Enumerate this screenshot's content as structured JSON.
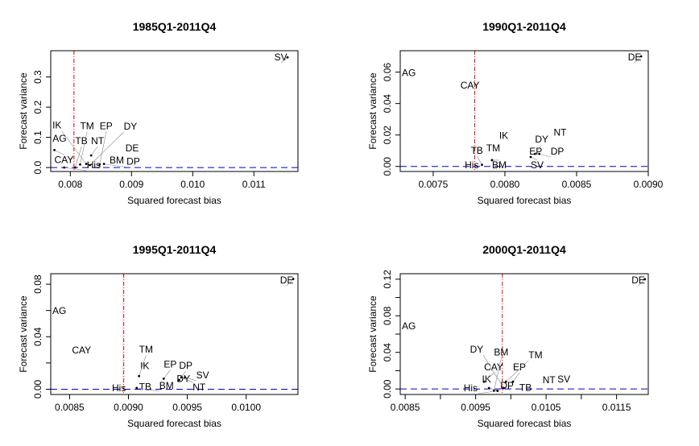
{
  "chart_data": [
    {
      "type": "scatter",
      "title": "1985Q1-2011Q4",
      "xlabel": "Squared forecast bias",
      "ylabel": "Forecast variance",
      "xlim": [
        0.00768,
        0.01172
      ],
      "ylim": [
        -0.013,
        0.387
      ],
      "xticks": [
        {
          "v": 0.008,
          "label": "0.008"
        },
        {
          "v": 0.009,
          "label": "0.009"
        },
        {
          "v": 0.01,
          "label": "0.010"
        },
        {
          "v": 0.011,
          "label": "0.011"
        }
      ],
      "yticks": [
        {
          "v": 0.0,
          "label": "0.0"
        },
        {
          "v": 0.1,
          "label": "0.1"
        },
        {
          "v": 0.2,
          "label": "0.2"
        },
        {
          "v": 0.3,
          "label": "0.3"
        }
      ],
      "hline": 0.0,
      "vline": 0.00806,
      "points": [
        {
          "label": "SV",
          "x": 0.01155,
          "y": 0.365,
          "anchor": "end"
        },
        {
          "label": "AG",
          "x": 0.00771,
          "y": 0.088
        },
        {
          "label": "CAY",
          "x": 0.00774,
          "y": 0.058
        },
        {
          "label": "NT",
          "x": 0.00834,
          "y": 0.04
        },
        {
          "label": "DE",
          "x": 0.0089,
          "y": 0.057
        },
        {
          "label": "BM",
          "x": 0.00864,
          "y": 0.016
        },
        {
          "label": "TM",
          "x": 0.00816,
          "y": 0.01
        },
        {
          "label": "IK",
          "x": 0.00826,
          "y": 0.012
        },
        {
          "label": "DY",
          "x": 0.00832,
          "y": 0.008
        },
        {
          "label": "EP",
          "x": 0.00848,
          "y": 0.01
        },
        {
          "label": "DP",
          "x": 0.00855,
          "y": 0.012
        },
        {
          "label": "His",
          "x": 0.0079,
          "y": 0.0
        },
        {
          "label": "TB",
          "x": 0.00808,
          "y": 0.0
        }
      ]
    },
    {
      "type": "scatter",
      "title": "1990Q1-2011Q4",
      "xlabel": "Squared forecast bias",
      "ylabel": "Forecast variance",
      "xlim": [
        0.00727,
        0.009
      ],
      "ylim": [
        -0.0032,
        0.0736
      ],
      "xticks": [
        {
          "v": 0.0075,
          "label": "0.0075"
        },
        {
          "v": 0.008,
          "label": "0.0080"
        },
        {
          "v": 0.0085,
          "label": "0.0085"
        },
        {
          "v": 0.009,
          "label": "0.0090"
        }
      ],
      "yticks": [
        {
          "v": 0.0,
          "label": "0.00"
        },
        {
          "v": 0.02,
          "label": "0.02"
        },
        {
          "v": 0.04,
          "label": "0.04"
        },
        {
          "v": 0.06,
          "label": "0.06"
        }
      ],
      "hline": 0.0,
      "vline": 0.00779,
      "points": [
        {
          "label": "DE",
          "x": 0.00895,
          "y": 0.07,
          "anchor": "end"
        },
        {
          "label": "AG",
          "x": 0.00728,
          "y": 0.058
        },
        {
          "label": "CAY",
          "x": 0.00769,
          "y": 0.05
        },
        {
          "label": "IK",
          "x": 0.00796,
          "y": 0.018
        },
        {
          "label": "NT",
          "x": 0.00834,
          "y": 0.02
        },
        {
          "label": "TM",
          "x": 0.00787,
          "y": 0.01
        },
        {
          "label": "BM",
          "x": 0.00791,
          "y": 0.004
        },
        {
          "label": "EP",
          "x": 0.00817,
          "y": 0.008
        },
        {
          "label": "DY",
          "x": 0.00821,
          "y": 0.008
        },
        {
          "label": "SV",
          "x": 0.00818,
          "y": 0.006
        },
        {
          "label": "DP",
          "x": 0.00824,
          "y": 0.008
        },
        {
          "label": "TB",
          "x": 0.00784,
          "y": 0.001
        },
        {
          "label": "His",
          "x": 0.00772,
          "y": -0.001
        }
      ]
    },
    {
      "type": "scatter",
      "title": "1995Q1-2011Q4",
      "xlabel": "Squared forecast bias",
      "ylabel": "Forecast variance",
      "xlim": [
        0.00834,
        0.01044
      ],
      "ylim": [
        -0.004,
        0.088
      ],
      "xticks": [
        {
          "v": 0.0085,
          "label": "0.0085"
        },
        {
          "v": 0.009,
          "label": "0.0090"
        },
        {
          "v": 0.0095,
          "label": "0.0095"
        },
        {
          "v": 0.01,
          "label": "0.0100"
        }
      ],
      "yticks": [
        {
          "v": 0.0,
          "label": "0.00"
        },
        {
          "v": 0.04,
          "label": "0.04"
        },
        {
          "v": 0.08,
          "label": "0.08"
        }
      ],
      "yminor": [
        0.02,
        0.06
      ],
      "hline": 0.0,
      "vline": 0.00896,
      "points": [
        {
          "label": "DE",
          "x": 0.0104,
          "y": 0.084,
          "anchor": "end"
        },
        {
          "label": "AG",
          "x": 0.00835,
          "y": 0.058
        },
        {
          "label": "CAY",
          "x": 0.00852,
          "y": 0.028
        },
        {
          "label": "IK",
          "x": 0.0091,
          "y": 0.016
        },
        {
          "label": "TM",
          "x": 0.00909,
          "y": 0.01
        },
        {
          "label": "EP",
          "x": 0.0093,
          "y": 0.008
        },
        {
          "label": "DY",
          "x": 0.00941,
          "y": 0.006
        },
        {
          "label": "DP",
          "x": 0.00943,
          "y": 0.007
        },
        {
          "label": "NT",
          "x": 0.00945,
          "y": 0.009
        },
        {
          "label": "SV",
          "x": 0.00948,
          "y": 0.009
        },
        {
          "label": "BM",
          "x": 0.00907,
          "y": 0.001
        },
        {
          "label": "TB",
          "x": 0.00909,
          "y": 0.0
        },
        {
          "label": "His",
          "x": 0.00886,
          "y": -0.001
        }
      ]
    },
    {
      "type": "scatter",
      "title": "2000Q1-2011Q4",
      "xlabel": "Squared forecast bias",
      "ylabel": "Forecast variance",
      "xlim": [
        0.00843,
        0.01195
      ],
      "ylim": [
        -0.006,
        0.126
      ],
      "xticks": [
        {
          "v": 0.0085,
          "label": "0.0085"
        },
        {
          "v": 0.0095,
          "label": "0.0095"
        },
        {
          "v": 0.0105,
          "label": "0.0105"
        },
        {
          "v": 0.0115,
          "label": "0.0115"
        }
      ],
      "xminor": [
        0.009,
        0.01,
        0.011
      ],
      "yticks": [
        {
          "v": 0.0,
          "label": "0.00"
        },
        {
          "v": 0.04,
          "label": "0.04"
        },
        {
          "v": 0.08,
          "label": "0.08"
        },
        {
          "v": 0.12,
          "label": "0.12"
        }
      ],
      "yminor": [
        0.02,
        0.06,
        0.1
      ],
      "hline": 0.0,
      "vline": 0.00988,
      "points": [
        {
          "label": "DE",
          "x": 0.0119,
          "y": 0.12,
          "anchor": "end"
        },
        {
          "label": "AG",
          "x": 0.00844,
          "y": 0.066
        },
        {
          "label": "IK",
          "x": 0.00959,
          "y": 0.008
        },
        {
          "label": "CAY",
          "x": 0.00962,
          "y": 0.008
        },
        {
          "label": "TM",
          "x": 0.00993,
          "y": 0.008
        },
        {
          "label": "EP",
          "x": 0.01003,
          "y": 0.008
        },
        {
          "label": "NT",
          "x": 0.01045,
          "y": 0.007
        },
        {
          "label": "SV",
          "x": 0.01066,
          "y": 0.008
        },
        {
          "label": "DP",
          "x": 0.00969,
          "y": 0.001
        },
        {
          "label": "BM",
          "x": 0.00976,
          "y": -0.002
        },
        {
          "label": "DY",
          "x": 0.0099,
          "y": 0.001
        },
        {
          "label": "TB",
          "x": 0.01012,
          "y": -0.001
        },
        {
          "label": "His",
          "x": 0.00981,
          "y": -0.002
        }
      ]
    }
  ]
}
